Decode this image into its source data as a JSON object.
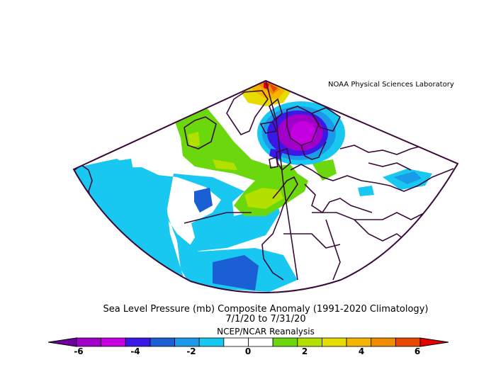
{
  "lab_title": "NOAA Physical Sciences Laboratory",
  "caption": {
    "line1": "Sea Level Pressure (mb) Composite Anomaly (1991-2020 Climatology)",
    "line2": "7/1/20  to 7/31/20",
    "line3": "NCEP/NCAR Reanalysis"
  },
  "colorbar": {
    "colors": [
      "#6f00a0",
      "#a000c8",
      "#c400e0",
      "#3a18e8",
      "#1a5fd4",
      "#1a9ae8",
      "#19c8f0",
      "#ffffff",
      "#ffffff",
      "#6ad80c",
      "#b4e000",
      "#e6dc00",
      "#f4b400",
      "#f08c00",
      "#e84800",
      "#e60000"
    ],
    "ticks": [
      {
        "value": "-6"
      },
      {
        "value": "-4"
      },
      {
        "value": "-2"
      },
      {
        "value": "0"
      },
      {
        "value": "2"
      },
      {
        "value": "4"
      },
      {
        "value": "6"
      }
    ]
  },
  "map": {
    "anomaly_low_center_mb": -6,
    "anomaly_high_max_mb": 6,
    "region": "North Atlantic and Europe"
  }
}
